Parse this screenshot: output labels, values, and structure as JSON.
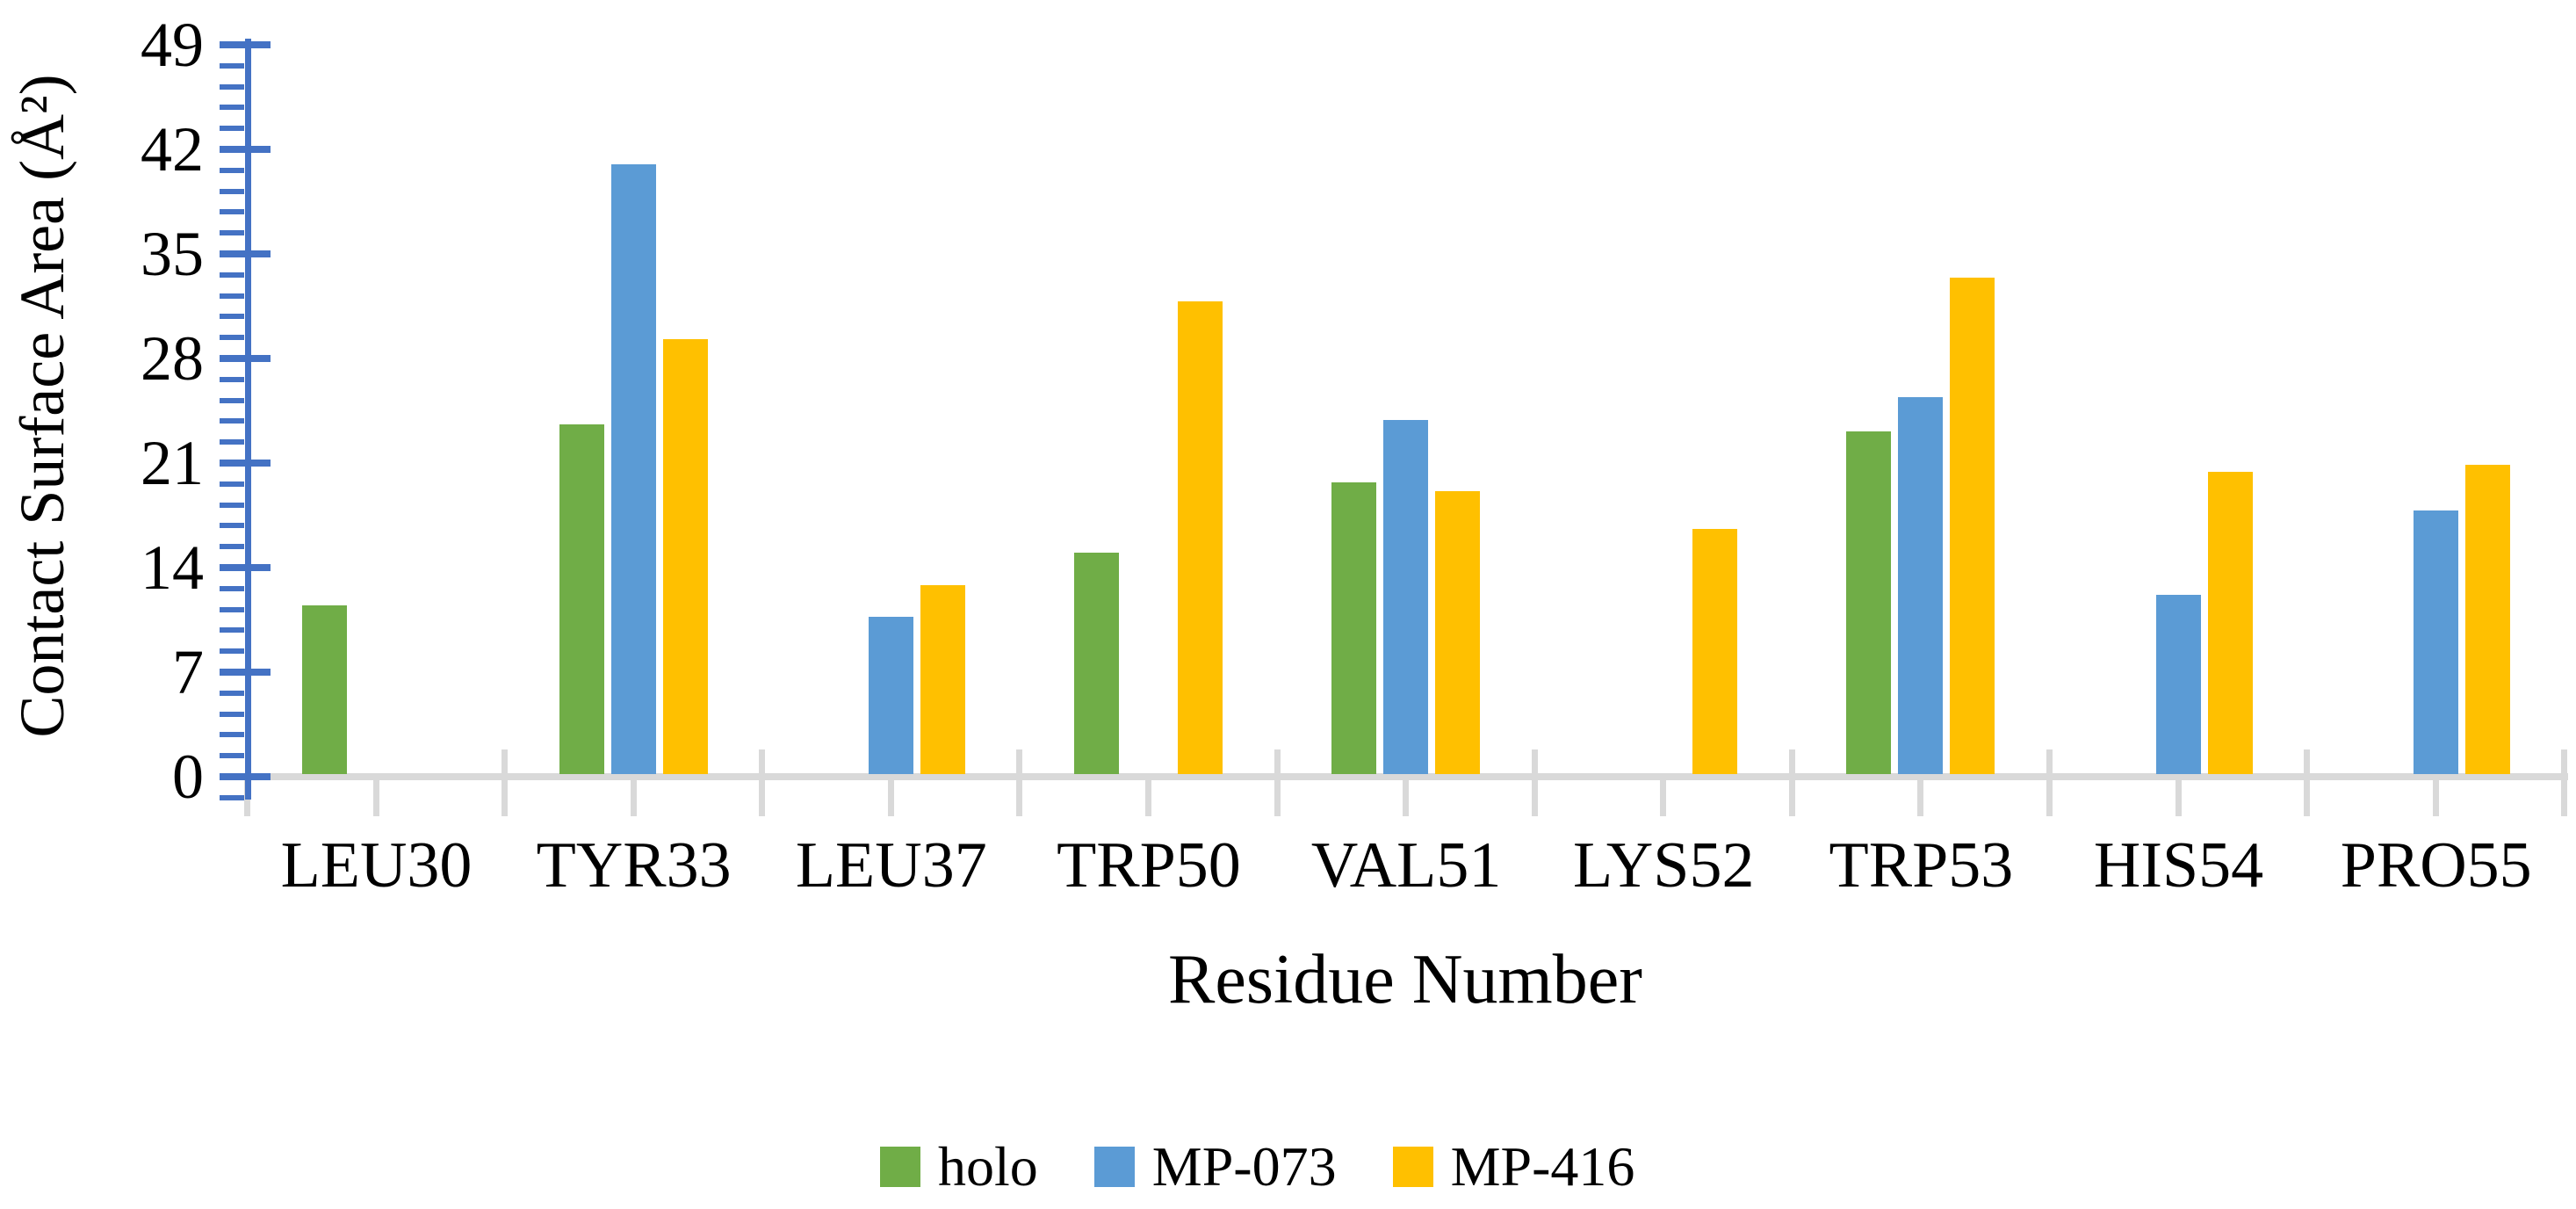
{
  "figure": {
    "background": "#ffffff"
  },
  "chart_data": {
    "type": "bar",
    "title": "",
    "xlabel": "Residue Number",
    "ylabel": "Contact Surface Area (Å²)",
    "categories": [
      "LEU30",
      "TYR33",
      "LEU37",
      "TRP50",
      "VAL51",
      "LYS52",
      "TRP53",
      "HIS54",
      "PRO55"
    ],
    "series": [
      {
        "name": "holo",
        "color": "#70AD47",
        "values": [
          11.5,
          23.6,
          0,
          15.0,
          19.7,
          0,
          23.1,
          0,
          0
        ]
      },
      {
        "name": "MP-073",
        "color": "#5B9BD5",
        "values": [
          0,
          41.0,
          10.7,
          0,
          23.9,
          0,
          25.4,
          12.2,
          17.8
        ]
      },
      {
        "name": "MP-416",
        "color": "#FFC000",
        "values": [
          0,
          29.3,
          12.8,
          31.8,
          19.1,
          16.6,
          33.4,
          20.4,
          20.9
        ]
      }
    ],
    "ylim": [
      0,
      49
    ],
    "yticks": [
      0,
      7,
      14,
      21,
      28,
      35,
      42,
      49
    ],
    "minor_tick_step": 1.4,
    "grid": false,
    "legend_position": "bottom",
    "legend_labels": [
      "holo",
      "MP-073",
      "MP-416"
    ],
    "axis_color": "#4472C4",
    "category_axis_color": "#D9D9D9",
    "text_color": "#000000"
  }
}
